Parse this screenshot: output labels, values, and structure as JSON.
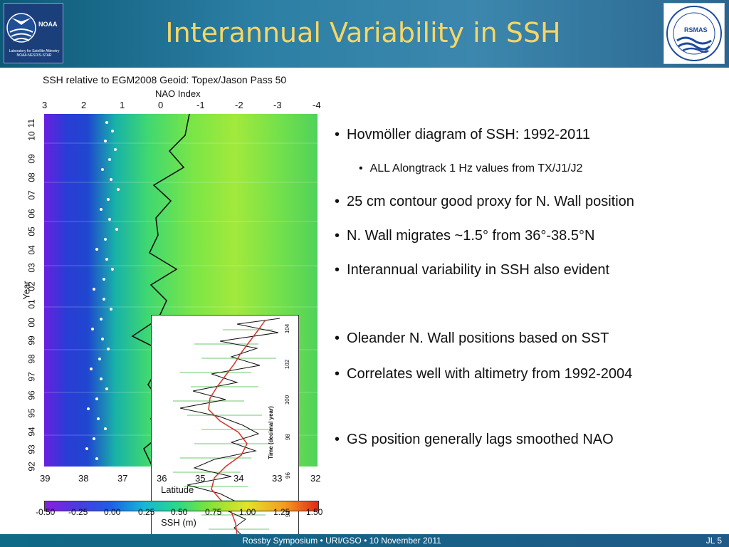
{
  "header": {
    "title": "Interannual Variability in SSH",
    "noaa_logo": {
      "word": "NOAA",
      "caption": "Laboratory for Satellite Altimetry NOAA-NESDIS-STAR",
      "icon": "noaa-seagull-icon"
    },
    "rsmas_logo": {
      "word": "RSMAS",
      "icon": "rsmas-waves-icon"
    }
  },
  "figure": {
    "title": "SSH relative to EGM2008 Geoid: Topex/Jason Pass 50",
    "top_axis_label": "NAO Index",
    "top_ticks": [
      "3",
      "2",
      "1",
      "0",
      "-1",
      "-2",
      "-3",
      "-4"
    ],
    "y_label": "Year",
    "y_ticks": [
      "92",
      "93",
      "94",
      "95",
      "96",
      "97",
      "98",
      "99",
      "00",
      "01",
      "02",
      "03",
      "04",
      "05",
      "06",
      "07",
      "08",
      "09",
      "10",
      "11"
    ],
    "x_label": "Latitude",
    "x_ticks": [
      "39",
      "38",
      "37",
      "36",
      "35",
      "34",
      "33",
      "32"
    ],
    "colorbar_label": "SSH (m)",
    "colorbar_ticks": [
      "-0.50",
      "-0.25",
      "0.00",
      "0.25",
      "0.50",
      "0.75",
      "1.00",
      "1.25",
      "1.50"
    ],
    "colors": {
      "contour_points": "#ffffff",
      "nao_line": "#111111"
    },
    "inset": {
      "y_label": "Time (decimal year)",
      "y_ticks": [
        "94",
        "96",
        "98",
        "100",
        "102",
        "104"
      ],
      "colors": {
        "raw": "#111111",
        "smoothed": "#d8342a",
        "error_bars": "#6cc96c"
      }
    }
  },
  "bullets": [
    {
      "level": 1,
      "text": "Hovmöller diagram of SSH: 1992-2011"
    },
    {
      "level": 2,
      "text": "ALL Alongtrack 1 Hz values from TX/J1/J2"
    },
    {
      "level": 1,
      "text": "25 cm contour good proxy for N. Wall position"
    },
    {
      "level": 1,
      "text": "N. Wall migrates ~1.5° from 36°-38.5°N"
    },
    {
      "level": 1,
      "text": "Interannual variability in SSH also evident"
    },
    {
      "level": 1,
      "text": "Oleander N. Wall positions based on SST"
    },
    {
      "level": 1,
      "text": "Correlates well with altimetry from 1992-2004"
    },
    {
      "level": 1,
      "text": "GS position generally lags smoothed NAO"
    }
  ],
  "footer": {
    "text": "Rossby Symposium • URI/GSO • 10 November 2011",
    "page": "JL 5"
  }
}
